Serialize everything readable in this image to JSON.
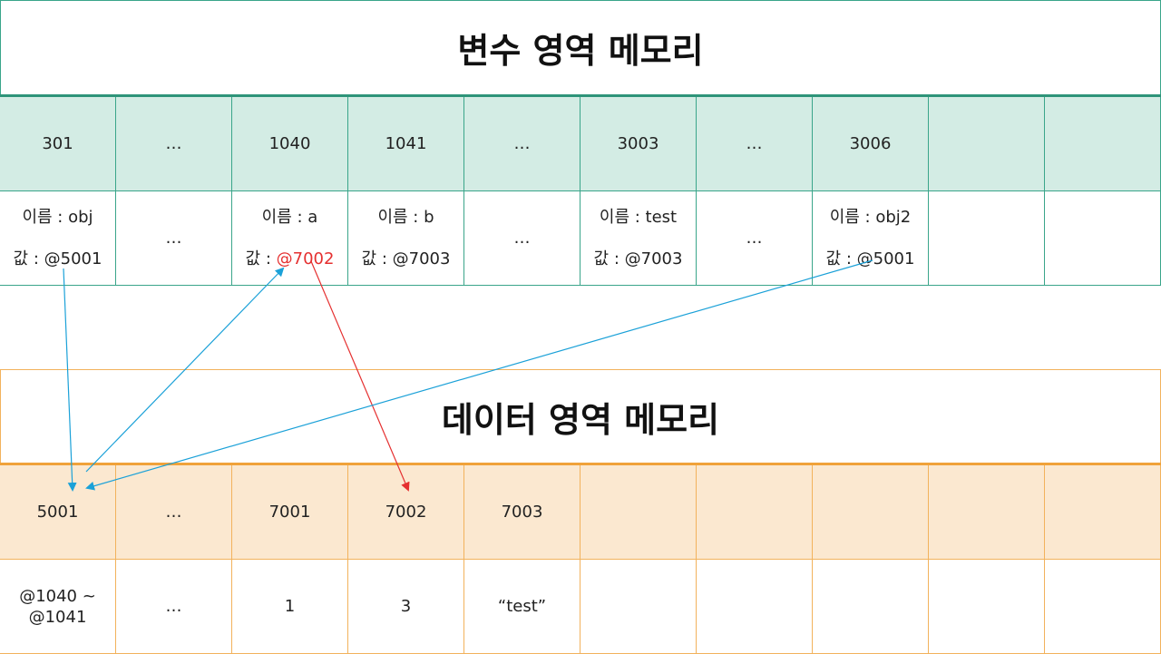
{
  "variable_area": {
    "title": "변수 영역 메모리",
    "addresses": [
      "301",
      "…",
      "1040",
      "1041",
      "…",
      "3003",
      "…",
      "3006",
      "",
      ""
    ],
    "cells": [
      {
        "name": "이름 : obj",
        "value": "값 : @5001"
      },
      {
        "text": "…"
      },
      {
        "name": "이름 : a",
        "value_prefix": "값 : ",
        "value_highlight": "@7002"
      },
      {
        "name": "이름 : b",
        "value": "값 : @7003"
      },
      {
        "text": "…"
      },
      {
        "name": "이름 : test",
        "value": "값 : @7003"
      },
      {
        "text": "…"
      },
      {
        "name": "이름 : obj2",
        "value": "값 : @5001"
      },
      {
        "text": ""
      },
      {
        "text": ""
      }
    ]
  },
  "data_area": {
    "title": "데이터 영역 메모리",
    "addresses": [
      "5001",
      "…",
      "7001",
      "7002",
      "7003",
      "",
      "",
      "",
      "",
      ""
    ],
    "values": [
      "@1040 ~\n@1041",
      "…",
      "1",
      "3",
      "“test”",
      "",
      "",
      "",
      "",
      ""
    ]
  },
  "colors": {
    "var_border": "#3aa58a",
    "var_header_fill": "#d3ece4",
    "data_border": "#f2b25c",
    "data_header_fill": "#fbe8d0",
    "arrow_blue": "#1ba1d8",
    "arrow_red": "#e53030",
    "highlight_red": "#e53030"
  },
  "arrows": [
    {
      "from": "obj 값 @5001",
      "to": "데이터 5001",
      "color": "blue"
    },
    {
      "from": "데이터 5001",
      "to": "a 값",
      "color": "blue"
    },
    {
      "from": "a 값 @7002",
      "to": "데이터 7002",
      "color": "red"
    },
    {
      "from": "obj2 값 @5001",
      "to": "데이터 5001",
      "color": "blue"
    }
  ]
}
